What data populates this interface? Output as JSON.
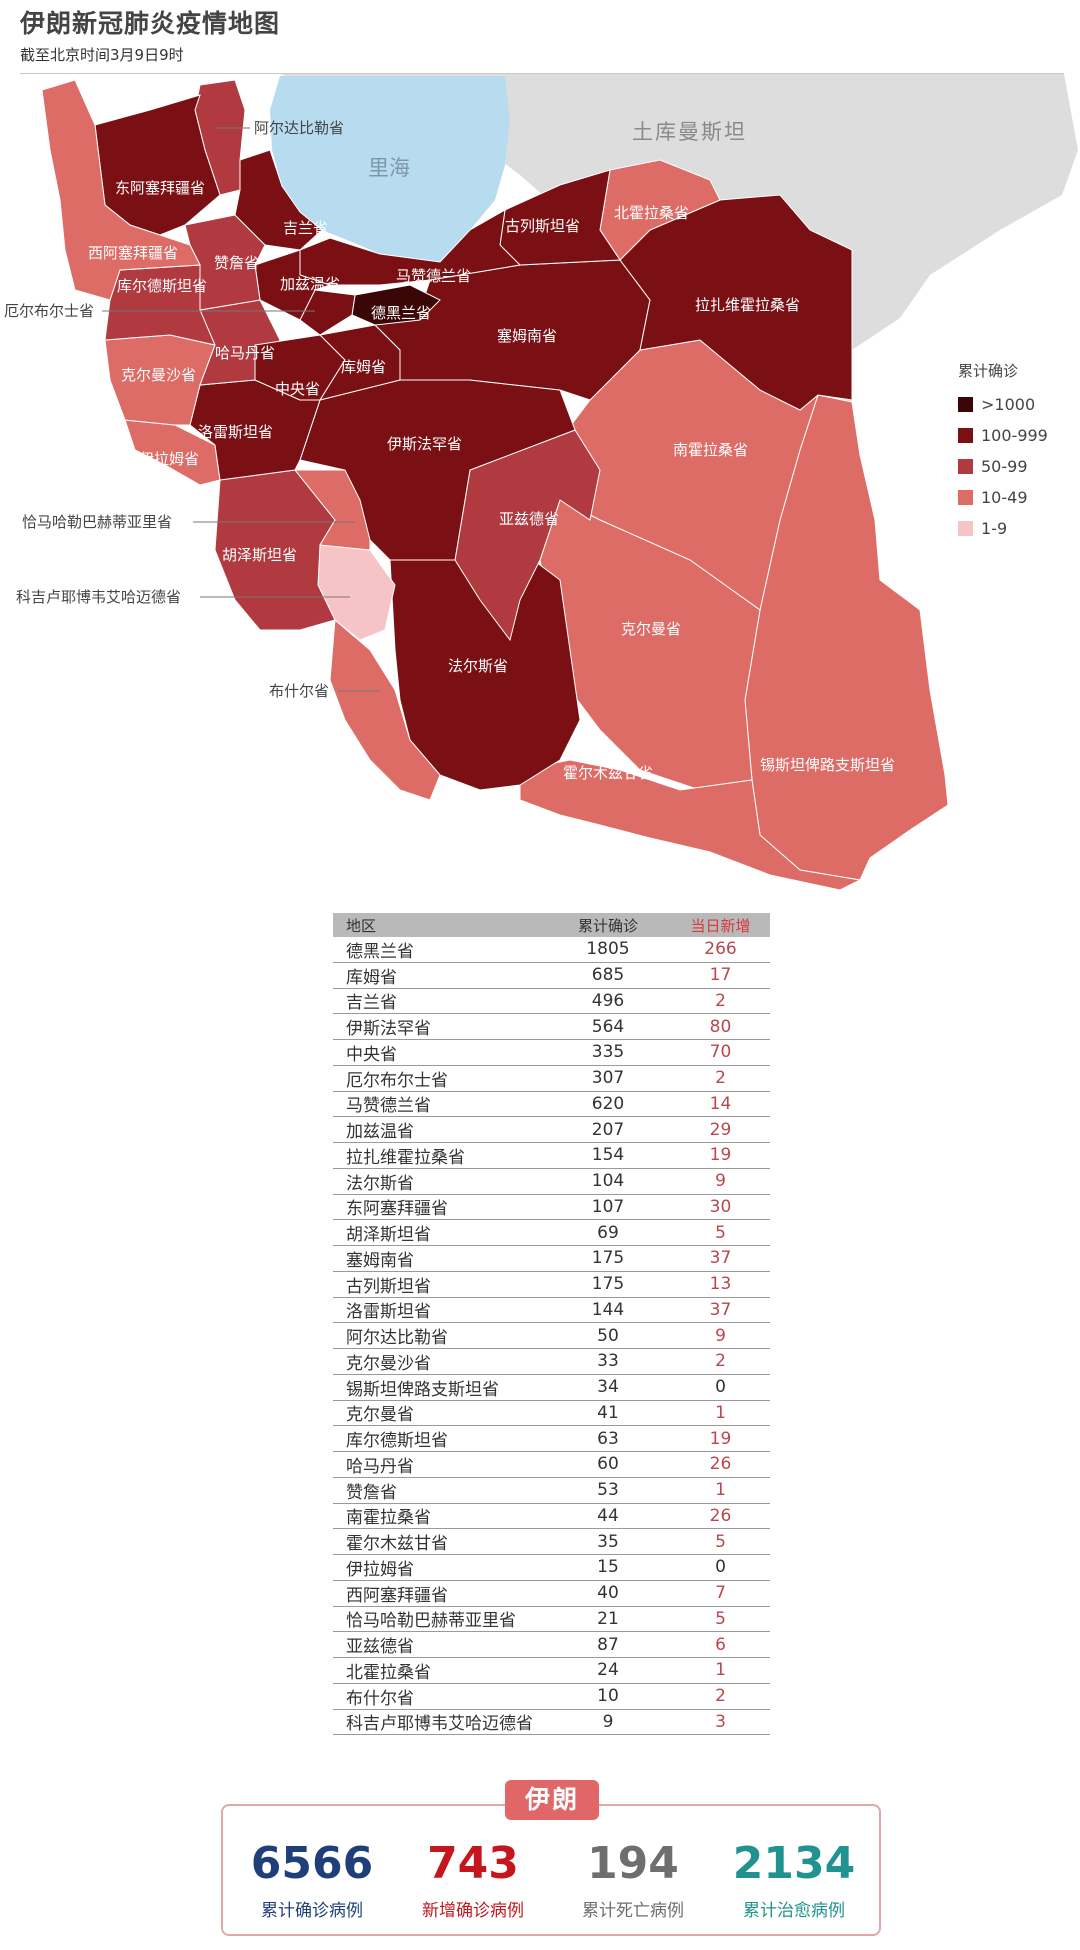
{
  "header": {
    "title": "伊朗新冠肺炎疫情地图",
    "subtitle": "截至北京时间3月9日9时"
  },
  "map": {
    "sea_label": "里海",
    "country_label": "土库曼斯坦",
    "province_labels": {
      "ardabil": "阿尔达比勒省",
      "east_azerbaijan": "东阿塞拜疆省",
      "gilan": "吉兰省",
      "golestan": "古列斯坦省",
      "north_khorasan": "北霍拉桑省",
      "west_azerbaijan": "西阿塞拜疆省",
      "zanjan": "赞詹省",
      "mazandaran": "马赞德兰省",
      "kurdistan": "库尔德斯坦省",
      "qazvin": "加兹温省",
      "razavi_khorasan": "拉扎维霍拉桑省",
      "alborz": "厄尔布尔士省",
      "tehran": "德黑兰省",
      "hamadan": "哈马丹省",
      "semnan": "塞姆南省",
      "kermanshah": "克尔曼沙省",
      "qom": "库姆省",
      "markazi": "中央省",
      "lorestan": "洛雷斯坦省",
      "isfahan": "伊斯法罕省",
      "south_khorasan": "南霍拉桑省",
      "ilam": "伊拉姆省",
      "chaharmahal": "恰马哈勒巴赫蒂亚里省",
      "yazd": "亚兹德省",
      "khuzestan": "胡泽斯坦省",
      "kohgiluyeh": "科吉卢耶博韦艾哈迈德省",
      "kerman": "克尔曼省",
      "bushehr": "布什尔省",
      "fars": "法尔斯省",
      "hormozgan": "霍尔木兹甘省",
      "sistan": "锡斯坦俾路支斯坦省"
    },
    "colors": {
      "over_1000": "#3a0606",
      "100_999": "#7a1014",
      "50_99": "#b13a40",
      "10_49": "#dd6b66",
      "1_9": "#f6c4c6",
      "sea": "#b7dcf0",
      "neighbor": "#dddddd"
    }
  },
  "legend": {
    "title": "累计确诊",
    "items": [
      {
        "label": ">1000",
        "color": "#3a0606"
      },
      {
        "label": "100-999",
        "color": "#7a1014"
      },
      {
        "label": "50-99",
        "color": "#b13a40"
      },
      {
        "label": "10-49",
        "color": "#dd6b66"
      },
      {
        "label": "1-9",
        "color": "#f6c4c6"
      }
    ]
  },
  "table": {
    "headers": [
      "地区",
      "累计确诊",
      "当日新增"
    ],
    "rows": [
      [
        "德黑兰省",
        "1805",
        "266"
      ],
      [
        "库姆省",
        "685",
        "17"
      ],
      [
        "吉兰省",
        "496",
        "2"
      ],
      [
        "伊斯法罕省",
        "564",
        "80"
      ],
      [
        "中央省",
        "335",
        "70"
      ],
      [
        "厄尔布尔士省",
        "307",
        "2"
      ],
      [
        "马赞德兰省",
        "620",
        "14"
      ],
      [
        "加兹温省",
        "207",
        "29"
      ],
      [
        "拉扎维霍拉桑省",
        "154",
        "19"
      ],
      [
        "法尔斯省",
        "104",
        "9"
      ],
      [
        "东阿塞拜疆省",
        "107",
        "30"
      ],
      [
        "胡泽斯坦省",
        "69",
        "5"
      ],
      [
        "塞姆南省",
        "175",
        "37"
      ],
      [
        "古列斯坦省",
        "175",
        "13"
      ],
      [
        "洛雷斯坦省",
        "144",
        "37"
      ],
      [
        "阿尔达比勒省",
        "50",
        "9"
      ],
      [
        "克尔曼沙省",
        "33",
        "2"
      ],
      [
        "锡斯坦俾路支斯坦省",
        "34",
        "0"
      ],
      [
        "克尔曼省",
        "41",
        "1"
      ],
      [
        "库尔德斯坦省",
        "63",
        "19"
      ],
      [
        "哈马丹省",
        "60",
        "26"
      ],
      [
        "赞詹省",
        "53",
        "1"
      ],
      [
        "南霍拉桑省",
        "44",
        "26"
      ],
      [
        "霍尔木兹甘省",
        "35",
        "5"
      ],
      [
        "伊拉姆省",
        "15",
        "0"
      ],
      [
        "西阿塞拜疆省",
        "40",
        "7"
      ],
      [
        "恰马哈勒巴赫蒂亚里省",
        "21",
        "5"
      ],
      [
        "亚兹德省",
        "87",
        "6"
      ],
      [
        "北霍拉桑省",
        "24",
        "1"
      ],
      [
        "布什尔省",
        "10",
        "2"
      ],
      [
        "科吉卢耶博韦艾哈迈德省",
        "9",
        "3"
      ]
    ]
  },
  "summary": {
    "badge": "伊朗",
    "stats": [
      {
        "value": "6566",
        "label": "累计确诊病例",
        "color": "#1f3f7a"
      },
      {
        "value": "743",
        "label": "新增确诊病例",
        "color": "#c6161d"
      },
      {
        "value": "194",
        "label": "累计死亡病例",
        "color": "#6e6e6e"
      },
      {
        "value": "2134",
        "label": "累计治愈病例",
        "color": "#20928f"
      }
    ]
  }
}
